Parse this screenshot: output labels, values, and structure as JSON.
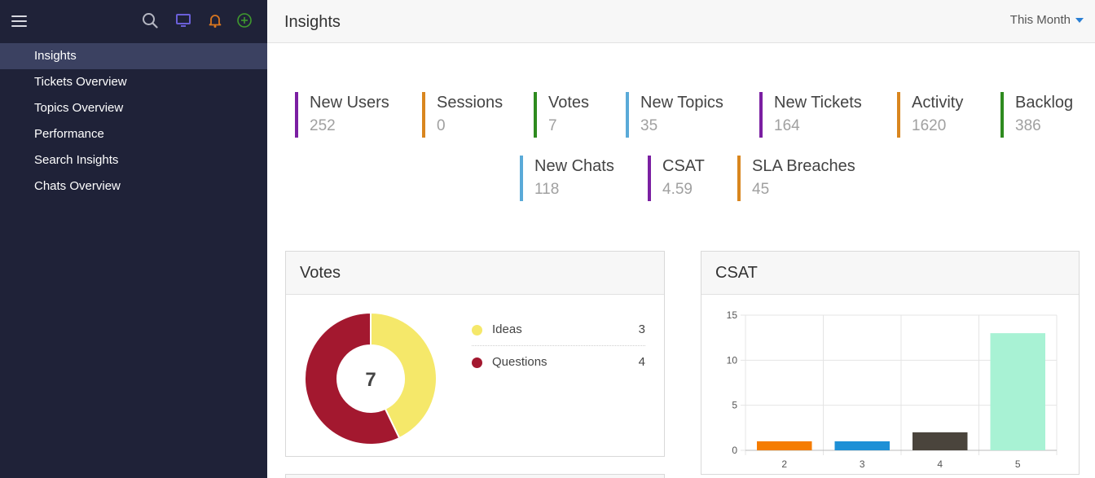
{
  "sidebar": {
    "nav": [
      {
        "label": "Insights",
        "active": true
      },
      {
        "label": "Tickets Overview",
        "active": false
      },
      {
        "label": "Topics Overview",
        "active": false
      },
      {
        "label": "Performance",
        "active": false
      },
      {
        "label": "Search Insights",
        "active": false
      },
      {
        "label": "Chats Overview",
        "active": false
      }
    ],
    "icons": [
      "menu-icon",
      "search-icon",
      "monitor-icon",
      "bell-icon",
      "add-circle-icon"
    ]
  },
  "header": {
    "title": "Insights",
    "period": "This Month"
  },
  "stats": [
    {
      "label": "New Users",
      "value": "252",
      "color": "#7b1fa2"
    },
    {
      "label": "Sessions",
      "value": "0",
      "color": "#d9861f"
    },
    {
      "label": "Votes",
      "value": "7",
      "color": "#2e8b1f"
    },
    {
      "label": "New Topics",
      "value": "35",
      "color": "#5aaad8"
    },
    {
      "label": "New Tickets",
      "value": "164",
      "color": "#7b1fa2"
    },
    {
      "label": "Activity",
      "value": "1620",
      "color": "#d9861f"
    },
    {
      "label": "Backlog",
      "value": "386",
      "color": "#2e8b1f"
    },
    {
      "label": "New Chats",
      "value": "118",
      "color": "#5aaad8"
    },
    {
      "label": "CSAT",
      "value": "4.59",
      "color": "#7b1fa2"
    },
    {
      "label": "SLA Breaches",
      "value": "45",
      "color": "#d9861f"
    }
  ],
  "votes_card": {
    "title": "Votes",
    "total": "7",
    "legend": [
      {
        "name": "Ideas",
        "count": "3",
        "color": "#f5e86a"
      },
      {
        "name": "Questions",
        "count": "4",
        "color": "#a3182f"
      }
    ]
  },
  "csat_card": {
    "title": "CSAT"
  },
  "chart_data": [
    {
      "type": "pie",
      "title": "Votes",
      "categories": [
        "Ideas",
        "Questions"
      ],
      "values": [
        3,
        4
      ],
      "colors": [
        "#f5e86a",
        "#a3182f"
      ],
      "center_label": "7"
    },
    {
      "type": "bar",
      "title": "CSAT",
      "categories": [
        "2",
        "3",
        "4",
        "5"
      ],
      "values": [
        1,
        1,
        2,
        13
      ],
      "colors": [
        "#f57c00",
        "#1e90d6",
        "#4a443c",
        "#a8f2d4"
      ],
      "yticks": [
        "0",
        "5",
        "10",
        "15"
      ],
      "ylim": [
        0,
        15
      ],
      "grid": true,
      "xlabel": "",
      "ylabel": ""
    }
  ]
}
